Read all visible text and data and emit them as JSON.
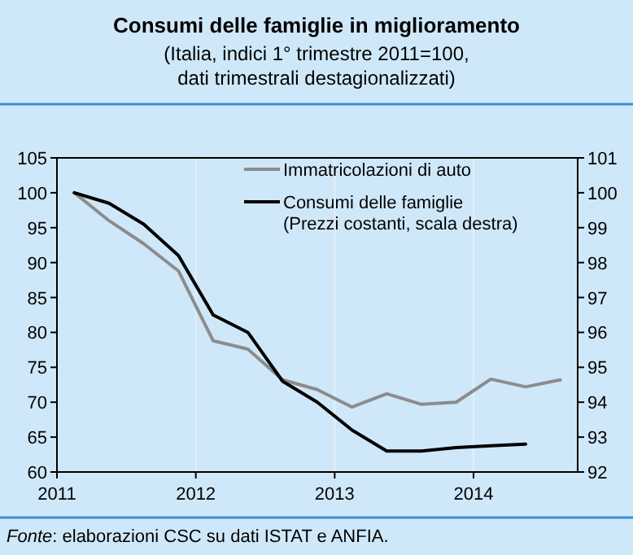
{
  "chart_data": {
    "type": "line",
    "title": "Consumi delle famiglie in miglioramento",
    "subtitle": "(Italia, indici 1° trimestre 2011=100,\ndati trimestrali destagionalizzati)",
    "x": [
      2011.125,
      2011.375,
      2011.625,
      2011.875,
      2012.125,
      2012.375,
      2012.625,
      2012.875,
      2013.125,
      2013.375,
      2013.625,
      2013.875,
      2014.125,
      2014.375,
      2014.625
    ],
    "series": [
      {
        "name": "Immatricolazioni di auto",
        "color": "#8c8c8c",
        "values": [
          100,
          96,
          92.7,
          88.8,
          78.8,
          77.6,
          73.2,
          71.8,
          69.3,
          71.2,
          69.7,
          70.0,
          73.3,
          72.2,
          73.2
        ]
      },
      {
        "name": "Consumi delle famiglie\n(Prezzi costanti, scala destra)",
        "color": "#000000",
        "axis": "y2",
        "values": [
          100,
          99.7,
          99.1,
          98.2,
          96.5,
          96.0,
          94.6,
          94.0,
          93.2,
          92.6,
          92.6,
          92.7,
          92.75,
          92.8,
          null
        ]
      }
    ],
    "xlim": [
      2011,
      2014.75
    ],
    "xticks": [
      2011,
      2012,
      2013,
      2014
    ],
    "ylim": [
      60,
      105
    ],
    "yticks": [
      60,
      65,
      70,
      75,
      80,
      85,
      90,
      95,
      100,
      105
    ],
    "y2lim": [
      92,
      101
    ],
    "y2ticks": [
      92,
      93,
      94,
      95,
      96,
      97,
      98,
      99,
      100,
      101
    ],
    "grid": "x",
    "legend": "top right",
    "line_style": "solid",
    "marker": "none",
    "annotations": [
      "Fonte: elaborazioni CSC su dati ISTAT e ANFIA."
    ]
  }
}
